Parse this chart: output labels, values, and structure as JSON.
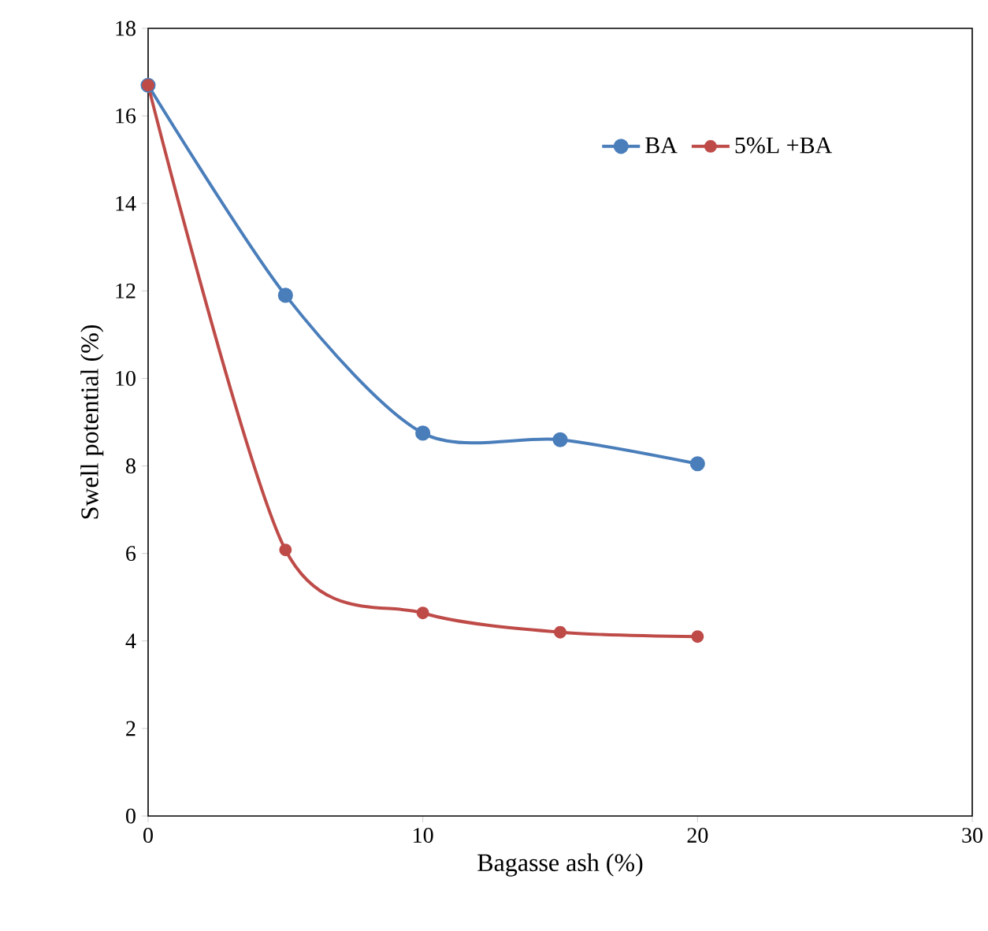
{
  "chart_data": {
    "type": "line",
    "xlabel": "Bagasse ash (%)",
    "ylabel": "Swell potential (%)",
    "x": [
      0,
      5,
      10,
      15,
      20
    ],
    "series": [
      {
        "name": "BA",
        "color": "#4a7ebb",
        "values": [
          16.7,
          11.9,
          8.75,
          8.6,
          8.05
        ]
      },
      {
        "name": "5%L +BA",
        "color": "#be4b48",
        "values": [
          16.7,
          6.08,
          4.64,
          4.2,
          4.1
        ]
      }
    ],
    "xlim": [
      0,
      30
    ],
    "xticks": [
      0,
      10,
      20,
      30
    ],
    "ylim": [
      0,
      18
    ],
    "yticks": [
      0,
      2,
      4,
      6,
      8,
      10,
      12,
      14,
      16,
      18
    ],
    "legend": "top right",
    "marker": "circle",
    "line_style": "solid",
    "grid": false
  }
}
